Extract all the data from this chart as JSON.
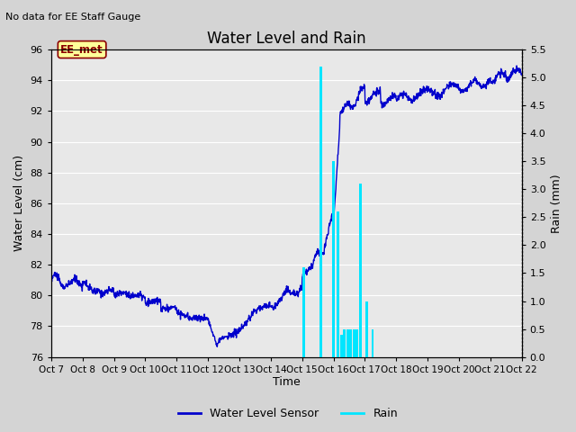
{
  "title": "Water Level and Rain",
  "top_left_text": "No data for EE Staff Gauge",
  "xlabel": "Time",
  "ylabel_left": "Water Level (cm)",
  "ylabel_right": "Rain (mm)",
  "ylim_left": [
    76,
    96
  ],
  "ylim_right": [
    0.0,
    5.5
  ],
  "yticks_left": [
    76,
    78,
    80,
    82,
    84,
    86,
    88,
    90,
    92,
    94,
    96
  ],
  "yticks_right": [
    0.0,
    0.5,
    1.0,
    1.5,
    2.0,
    2.5,
    3.0,
    3.5,
    4.0,
    4.5,
    5.0,
    5.5
  ],
  "xtick_labels": [
    "Oct 7",
    "Oct 8",
    "Oct 9",
    "Oct 10",
    "Oct 11",
    "Oct 12",
    "Oct 13",
    "Oct 14",
    "Oct 15",
    "Oct 16",
    "Oct 17",
    "Oct 18",
    "Oct 19",
    "Oct 20",
    "Oct 21",
    "Oct 22"
  ],
  "water_color": "#0000cc",
  "rain_color": "#00e5ff",
  "background_color": "#d4d4d4",
  "plot_bg_color": "#e8e8e8",
  "grid_color": "#ffffff",
  "legend_water": "Water Level Sensor",
  "legend_rain": "Rain",
  "annotation_text": "EE_met",
  "annotation_box_color": "#ffff99",
  "annotation_text_color": "#8b0000"
}
